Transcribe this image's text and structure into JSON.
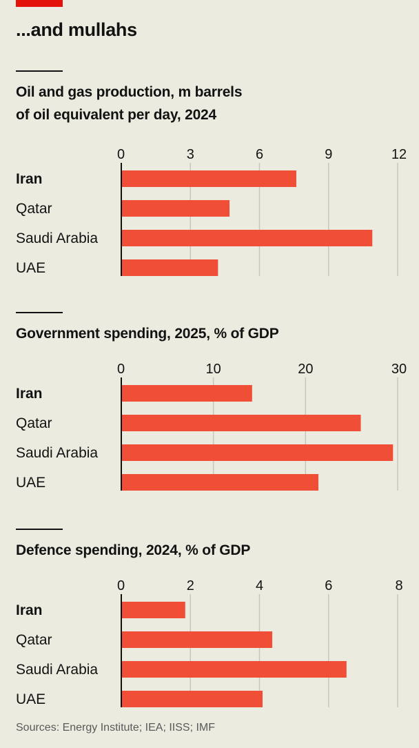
{
  "headline": "...and mullahs",
  "colors": {
    "brand_red": "#e3120b",
    "bar": "#f04e37",
    "grid": "#c8c7bc",
    "axis": "#121212"
  },
  "chart_data": [
    {
      "type": "bar",
      "orientation": "horizontal",
      "title": "Oil and gas production, m barrels of oil equivalent per day, 2024",
      "title_lines": [
        "Oil and gas production, m barrels",
        "of oil equivalent per day, 2024"
      ],
      "categories": [
        "Iran",
        "Qatar",
        "Saudi Arabia",
        "UAE"
      ],
      "highlight": "Iran",
      "values": [
        7.6,
        4.7,
        10.9,
        4.2
      ],
      "xlim": [
        0,
        12
      ],
      "ticks": [
        0,
        3,
        6,
        9,
        12
      ],
      "grid": true
    },
    {
      "type": "bar",
      "orientation": "horizontal",
      "title": "Government spending, 2025, % of GDP",
      "title_lines": [
        "Government spending, 2025, % of GDP"
      ],
      "categories": [
        "Iran",
        "Qatar",
        "Saudi Arabia",
        "UAE"
      ],
      "highlight": "Iran",
      "values": [
        14.2,
        26.0,
        29.5,
        21.4
      ],
      "xlim": [
        0,
        30
      ],
      "ticks": [
        0,
        10,
        20,
        30
      ],
      "grid": true
    },
    {
      "type": "bar",
      "orientation": "horizontal",
      "title": "Defence spending, 2024, % of GDP",
      "title_lines": [
        "Defence spending, 2024, % of GDP"
      ],
      "categories": [
        "Iran",
        "Qatar",
        "Saudi Arabia",
        "UAE"
      ],
      "highlight": "Iran",
      "values": [
        1.85,
        4.37,
        6.52,
        4.09
      ],
      "xlim": [
        0,
        8
      ],
      "ticks": [
        0,
        2,
        4,
        6,
        8
      ],
      "grid": true
    }
  ],
  "source": "Sources: Energy Institute; IEA; IISS; IMF"
}
